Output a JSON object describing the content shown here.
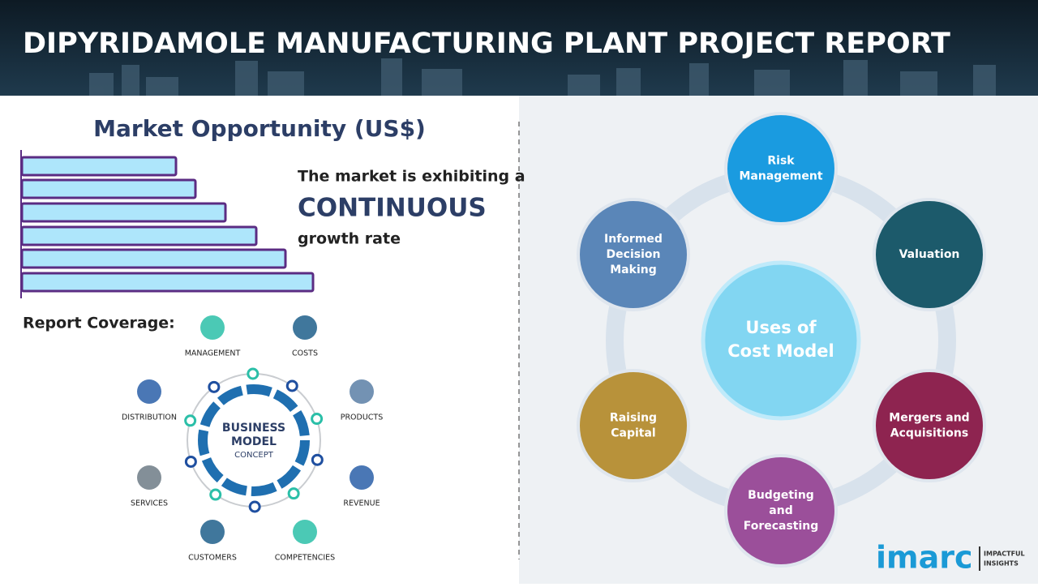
{
  "header": {
    "title": "DIPYRIDAMOLE MANUFACTURING PLANT PROJECT REPORT"
  },
  "market": {
    "heading": "Market Opportunity (US$)",
    "line1": "The market is exhibiting a",
    "emphasis": "CONTINUOUS",
    "line2": "growth rate"
  },
  "coverage": {
    "heading": "Report Coverage:",
    "center": [
      "BUSINESS",
      "MODEL",
      "CONCEPT"
    ],
    "items": [
      "MANAGEMENT",
      "COSTS",
      "DISTRIBUTION",
      "PRODUCTS",
      "SERVICES",
      "REVENUE",
      "CUSTOMERS",
      "COMPETENCIES"
    ]
  },
  "uses": {
    "center": [
      "Uses of",
      "Cost Model"
    ],
    "nodes": [
      {
        "label": [
          "Risk",
          "Management"
        ]
      },
      {
        "label": [
          "Valuation"
        ]
      },
      {
        "label": [
          "Mergers and",
          "Acquisitions"
        ]
      },
      {
        "label": [
          "Budgeting",
          "and",
          "Forecasting"
        ]
      },
      {
        "label": [
          "Raising",
          "Capital"
        ]
      },
      {
        "label": [
          "Informed",
          "Decision",
          "Making"
        ]
      }
    ]
  },
  "logo": {
    "brand": "imarc",
    "tagline": [
      "IMPACTFUL",
      "INSIGHTS"
    ]
  }
}
